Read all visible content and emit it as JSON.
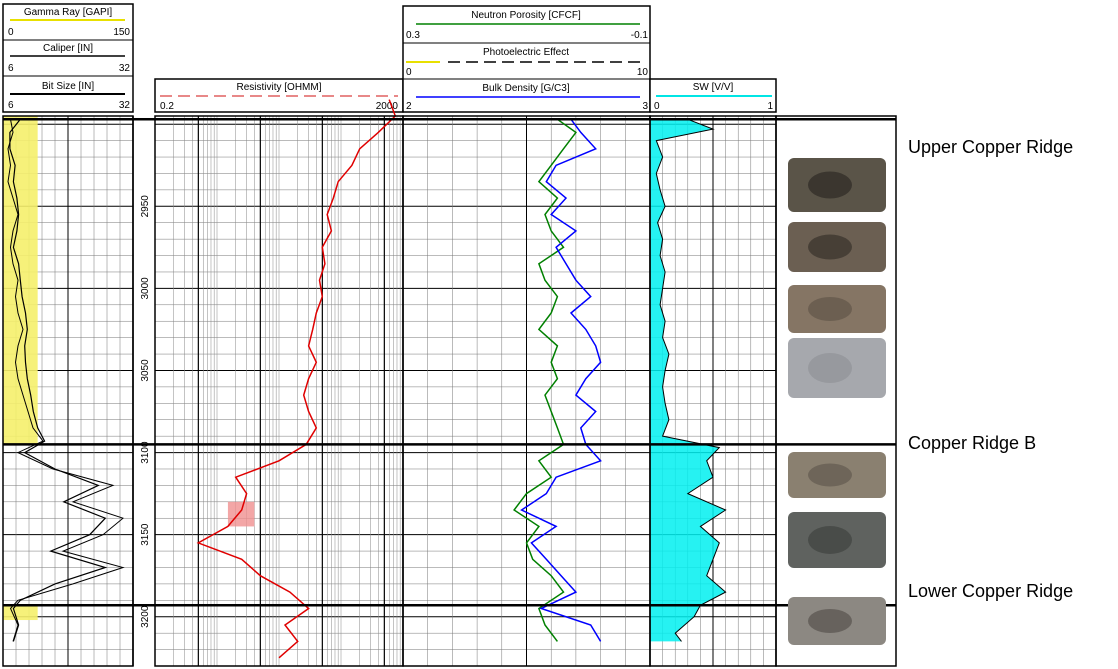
{
  "chart_data": {
    "type": "line",
    "title": "",
    "y_axis": {
      "label": "",
      "ticks": [
        2950,
        3000,
        3050,
        3100,
        3150,
        3200
      ],
      "range": [
        2895,
        3230
      ],
      "inverted": true
    },
    "tracks": [
      {
        "name": "track-1",
        "curves": [
          {
            "name": "Gamma Ray [GAPI]",
            "min": 0,
            "max": 150,
            "color": "#e8e000"
          },
          {
            "name": "Caliper [IN]",
            "min": 6,
            "max": 32,
            "color": "#000000"
          },
          {
            "name": "Bit Size [IN]",
            "min": 6,
            "max": 32,
            "color": "#000000"
          }
        ]
      },
      {
        "name": "track-2",
        "curves": [
          {
            "name": "Resistivity [OHMM]",
            "min": "0.2",
            "max": "2000",
            "color": "#e00000",
            "scale": "log"
          }
        ]
      },
      {
        "name": "track-3",
        "curves": [
          {
            "name": "Neutron Porosity [CFCF]",
            "min": "0.3",
            "max": "-0.1",
            "color": "#008000"
          },
          {
            "name": "Photoelectric Effect",
            "min": "0",
            "max": "10",
            "color": "#e8e000"
          },
          {
            "name": "Bulk Density [G/C3]",
            "min": "2",
            "max": "3",
            "color": "#0000ff"
          }
        ]
      },
      {
        "name": "track-4",
        "curves": [
          {
            "name": "SW [V/V]",
            "min": "0",
            "max": "1",
            "color": "#00e5e5"
          }
        ]
      }
    ],
    "zones": [
      {
        "name": "Upper Copper Ridge",
        "top": 2897
      },
      {
        "name": "Copper Ridge B",
        "top": 3095
      },
      {
        "name": "Lower Copper Ridge",
        "top": 3193
      }
    ],
    "series": [
      {
        "name": "Gamma Ray [GAPI]",
        "depth": [
          2897,
          2905,
          2915,
          2925,
          2935,
          2945,
          2955,
          2965,
          2975,
          2985,
          2995,
          3005,
          3015,
          3025,
          3035,
          3045,
          3055,
          3065,
          3075,
          3085,
          3093,
          3100,
          3110,
          3120,
          3130,
          3140,
          3150,
          3160,
          3170,
          3180,
          3190,
          3195,
          3205,
          3215
        ],
        "values": [
          20,
          8,
          8,
          14,
          12,
          16,
          18,
          16,
          12,
          18,
          20,
          22,
          26,
          28,
          25,
          26,
          28,
          32,
          35,
          40,
          48,
          25,
          60,
          110,
          70,
          118,
          100,
          55,
          118,
          60,
          20,
          12,
          18,
          12
        ]
      },
      {
        "name": "Resistivity [OHMM]",
        "depth": [
          2885,
          2895,
          2905,
          2915,
          2925,
          2935,
          2945,
          2955,
          2965,
          2975,
          2985,
          2995,
          3005,
          3015,
          3025,
          3035,
          3045,
          3055,
          3065,
          3075,
          3085,
          3095,
          3105,
          3115,
          3125,
          3135,
          3145,
          3155,
          3165,
          3175,
          3185,
          3195,
          3205,
          3215,
          3225
        ],
        "values": [
          1200,
          1500,
          800,
          400,
          300,
          180,
          150,
          120,
          140,
          100,
          110,
          90,
          100,
          80,
          70,
          60,
          80,
          60,
          50,
          60,
          80,
          55,
          20,
          4,
          6,
          5,
          3,
          1,
          5,
          10,
          30,
          60,
          25,
          40,
          20
        ]
      },
      {
        "name": "Neutron Porosity [CFCF]",
        "depth": [
          2897,
          2905,
          2915,
          2925,
          2935,
          2945,
          2955,
          2965,
          2975,
          2985,
          2995,
          3005,
          3015,
          3025,
          3035,
          3045,
          3055,
          3065,
          3075,
          3085,
          3095,
          3105,
          3115,
          3125,
          3135,
          3145,
          3155,
          3165,
          3175,
          3185,
          3195,
          3205,
          3215
        ],
        "values": [
          0.05,
          0.02,
          0.04,
          0.06,
          0.08,
          0.05,
          0.07,
          0.06,
          0.04,
          0.08,
          0.07,
          0.05,
          0.06,
          0.08,
          0.05,
          0.06,
          0.05,
          0.07,
          0.06,
          0.05,
          0.04,
          0.08,
          0.06,
          0.1,
          0.12,
          0.08,
          0.1,
          0.09,
          0.06,
          0.04,
          0.08,
          0.07,
          0.05
        ]
      },
      {
        "name": "Bulk Density [G/C3]",
        "depth": [
          2897,
          2905,
          2915,
          2925,
          2935,
          2945,
          2955,
          2965,
          2975,
          2985,
          2995,
          3005,
          3015,
          3025,
          3035,
          3045,
          3055,
          3065,
          3075,
          3085,
          3095,
          3105,
          3115,
          3125,
          3135,
          3145,
          3155,
          3165,
          3175,
          3185,
          3195,
          3205,
          3215
        ],
        "values": [
          2.68,
          2.72,
          2.78,
          2.62,
          2.58,
          2.66,
          2.6,
          2.7,
          2.62,
          2.66,
          2.7,
          2.76,
          2.68,
          2.74,
          2.78,
          2.8,
          2.74,
          2.7,
          2.78,
          2.72,
          2.74,
          2.8,
          2.62,
          2.58,
          2.48,
          2.62,
          2.52,
          2.58,
          2.64,
          2.7,
          2.56,
          2.76,
          2.8
        ]
      },
      {
        "name": "SW [V/V]",
        "depth": [
          2897,
          2903,
          2910,
          2920,
          2930,
          2940,
          2950,
          2960,
          2970,
          2980,
          2990,
          3000,
          3010,
          3020,
          3030,
          3040,
          3050,
          3060,
          3070,
          3080,
          3090,
          3097,
          3105,
          3115,
          3125,
          3135,
          3145,
          3155,
          3165,
          3175,
          3185,
          3193,
          3200,
          3210,
          3215
        ],
        "values": [
          0.3,
          0.5,
          0.05,
          0.1,
          0.05,
          0.08,
          0.12,
          0.06,
          0.1,
          0.08,
          0.12,
          0.1,
          0.08,
          0.12,
          0.1,
          0.15,
          0.12,
          0.1,
          0.12,
          0.15,
          0.1,
          0.55,
          0.45,
          0.5,
          0.3,
          0.6,
          0.4,
          0.55,
          0.5,
          0.45,
          0.6,
          0.4,
          0.35,
          0.2,
          0.25
        ]
      },
      {
        "name": "Caliper [IN]",
        "depth": [
          2897,
          2905,
          2915,
          2925,
          2935,
          2945,
          2955,
          2965,
          2975,
          2985,
          2995,
          3005,
          3015,
          3025,
          3035,
          3045,
          3055,
          3065,
          3075,
          3085,
          3093,
          3100,
          3110,
          3120,
          3130,
          3140,
          3150,
          3160,
          3170,
          3180,
          3190,
          3195,
          3205,
          3215
        ],
        "values": [
          7.5,
          8,
          7,
          7.5,
          7,
          8,
          9,
          8,
          7.5,
          8,
          9,
          8.5,
          9,
          10,
          9,
          8.5,
          9,
          10,
          11,
          12,
          14,
          9,
          16,
          28,
          20,
          30,
          26,
          18,
          30,
          20,
          9,
          7.5,
          9,
          8
        ]
      }
    ]
  },
  "cores": [
    {
      "name": "core-photo-1",
      "base": "#5a5448",
      "accent": "#262320"
    },
    {
      "name": "core-photo-2",
      "base": "#6b5f52",
      "accent": "#2e2925"
    },
    {
      "name": "core-photo-3",
      "base": "#857564",
      "accent": "#5c5045"
    },
    {
      "name": "core-photo-4",
      "base": "#a6a8ad",
      "accent": "#8d9095"
    },
    {
      "name": "core-photo-5",
      "base": "#8a8070",
      "accent": "#5b544a"
    },
    {
      "name": "core-photo-6",
      "base": "#5f625f",
      "accent": "#3b3d3b"
    },
    {
      "name": "core-photo-7",
      "base": "#8c8882",
      "accent": "#4e4a45"
    }
  ]
}
